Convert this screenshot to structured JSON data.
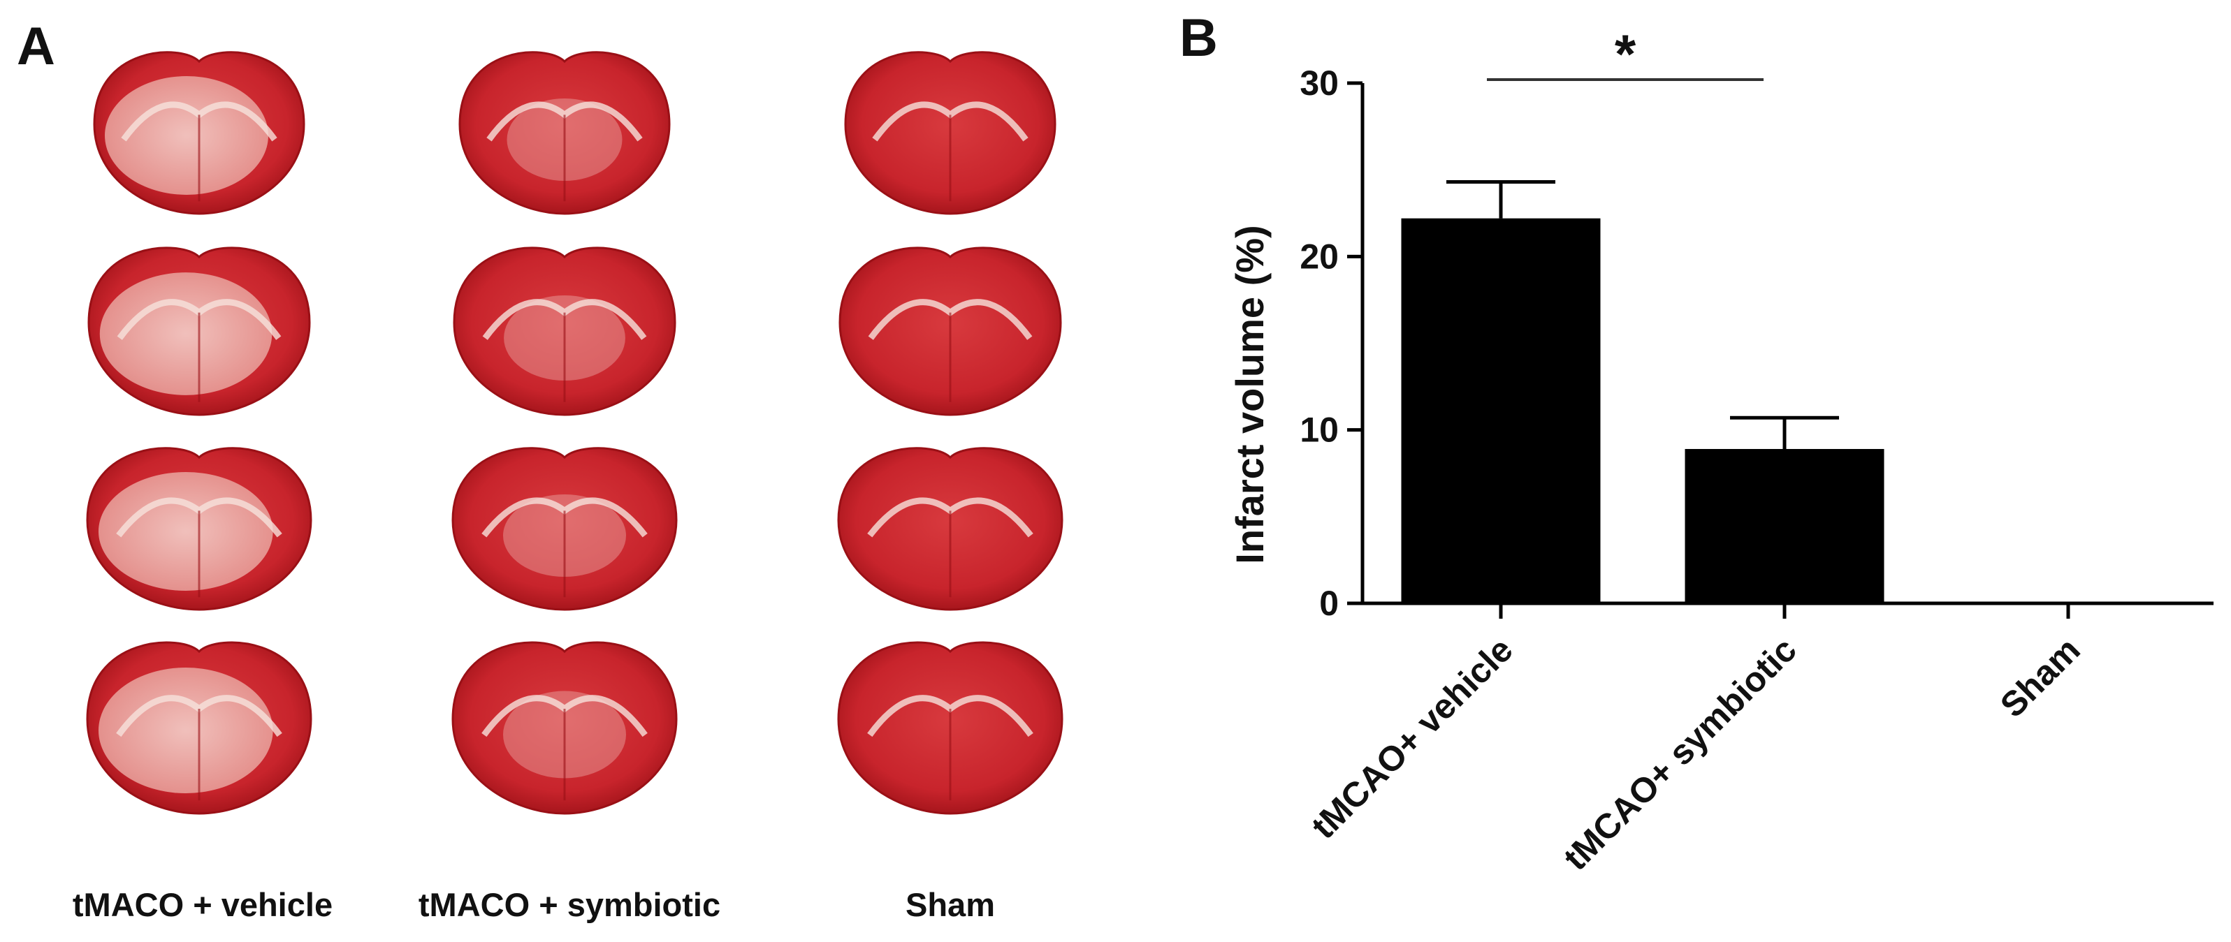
{
  "panels": {
    "a": {
      "letter": "A",
      "columns": [
        {
          "label": "tMACO + vehicle",
          "sections": 4
        },
        {
          "label": "tMACO + symbiotic",
          "sections": 4
        },
        {
          "label": "Sham",
          "sections": 4
        }
      ],
      "colors": {
        "tissue_red": "#c8242c",
        "tissue_dark_red": "#9a1016",
        "infarct_pale": "#f3cfc8",
        "white_matter": "#f6e2dc"
      }
    },
    "b": {
      "letter": "B"
    }
  },
  "chart_data": {
    "type": "bar",
    "categories": [
      "tMCAO+ vehicle",
      "tMCAO+ symbiotic",
      "Sham"
    ],
    "values": [
      22.2,
      8.9,
      0
    ],
    "errors": [
      2.1,
      1.8,
      0
    ],
    "title": "",
    "xlabel": "",
    "ylabel": "Infarct  volume (%)",
    "ylim": [
      0,
      30
    ],
    "yticks": [
      0,
      10,
      20,
      30
    ],
    "grid": false,
    "bar_color": "#000000",
    "significance": {
      "between": [
        0,
        1
      ],
      "label": "*"
    }
  }
}
